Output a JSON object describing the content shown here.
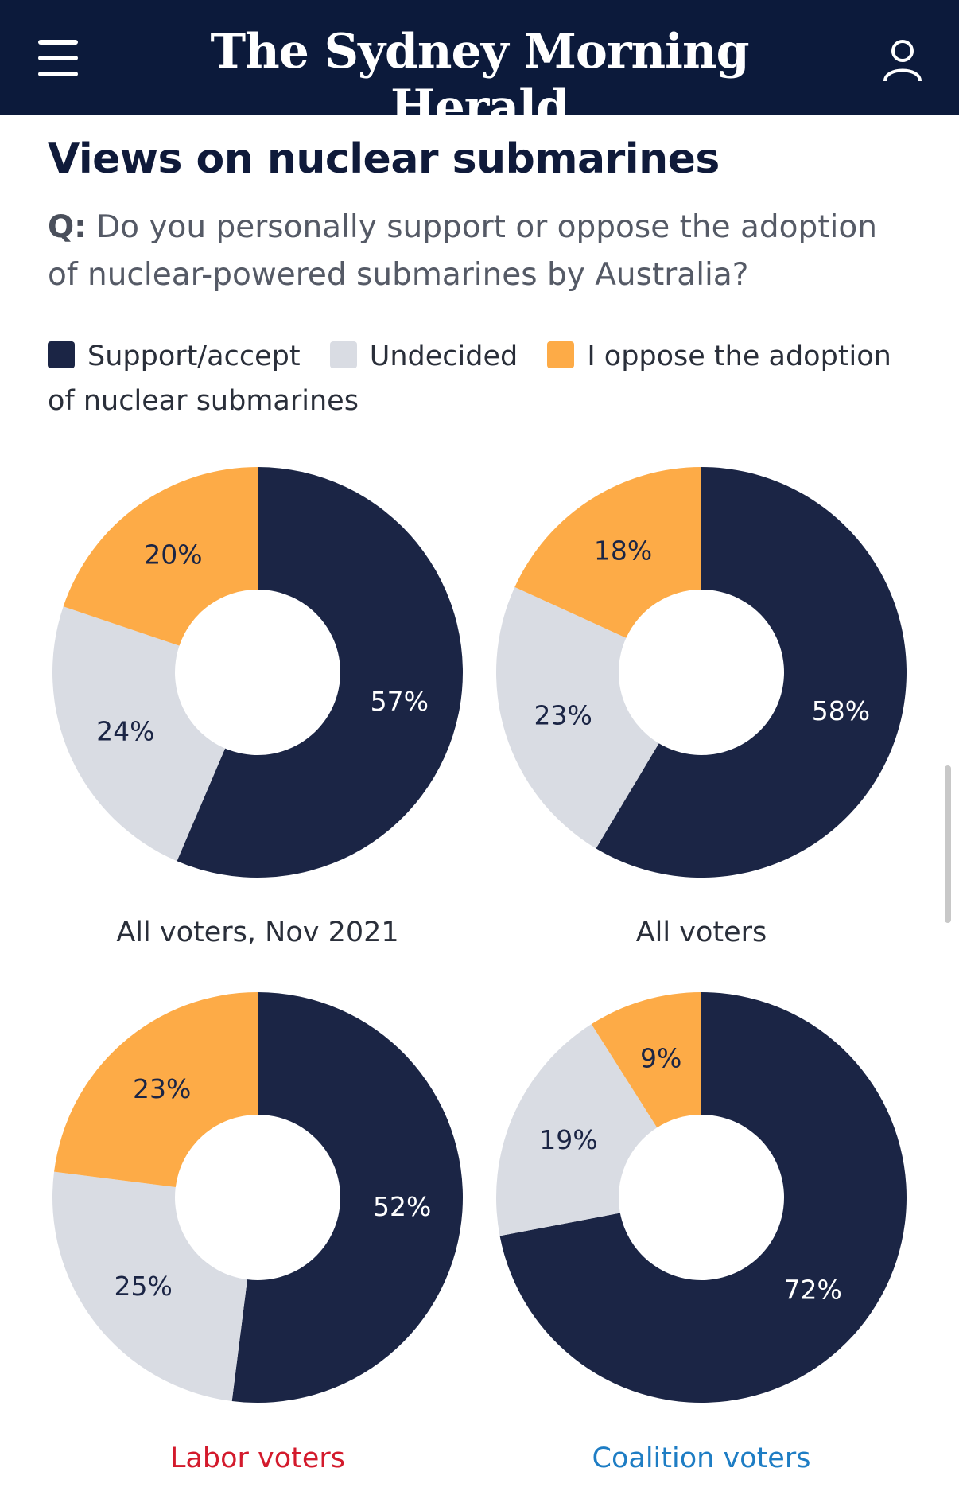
{
  "header": {
    "masthead": "The Sydney Morning Herald",
    "menu_icon": "hamburger-menu-icon",
    "account_icon": "user-account-icon",
    "background_color": "#0c1a3b"
  },
  "article": {
    "title": "Views on nuclear submarines",
    "question_prefix": "Q:",
    "question_text": "Do you personally support or oppose the adoption of nuclear-powered submarines by Australia?"
  },
  "legend": [
    {
      "label": "Support/accept",
      "color": "#1b2545"
    },
    {
      "label": "Undecided",
      "color": "#d9dce3"
    },
    {
      "label": "I oppose the adoption of nuclear submarines",
      "color": "#fdab47"
    }
  ],
  "chart_data": [
    {
      "type": "pie",
      "title": "All voters, Nov 2021",
      "title_color": "#2a2f3a",
      "categories": [
        "Support/accept",
        "Undecided",
        "I oppose the adoption of nuclear submarines"
      ],
      "values": [
        57,
        24,
        20
      ],
      "labels": [
        "57%",
        "24%",
        "20%"
      ],
      "colors": [
        "#1b2545",
        "#d9dce3",
        "#fdab47"
      ]
    },
    {
      "type": "pie",
      "title": "All voters",
      "title_color": "#2a2f3a",
      "categories": [
        "Support/accept",
        "Undecided",
        "I oppose the adoption of nuclear submarines"
      ],
      "values": [
        58,
        23,
        18
      ],
      "labels": [
        "58%",
        "23%",
        "18%"
      ],
      "colors": [
        "#1b2545",
        "#d9dce3",
        "#fdab47"
      ]
    },
    {
      "type": "pie",
      "title": "Labor voters",
      "title_color": "#d31a2c",
      "categories": [
        "Support/accept",
        "Undecided",
        "I oppose the adoption of nuclear submarines"
      ],
      "values": [
        52,
        25,
        23
      ],
      "labels": [
        "52%",
        "25%",
        "23%"
      ],
      "colors": [
        "#1b2545",
        "#d9dce3",
        "#fdab47"
      ]
    },
    {
      "type": "pie",
      "title": "Coalition voters",
      "title_color": "#1e7dc4",
      "categories": [
        "Support/accept",
        "Undecided",
        "I oppose the adoption of nuclear submarines"
      ],
      "values": [
        72,
        19,
        9
      ],
      "labels": [
        "72%",
        "19%",
        "9%"
      ],
      "colors": [
        "#1b2545",
        "#d9dce3",
        "#fdab47"
      ]
    }
  ]
}
